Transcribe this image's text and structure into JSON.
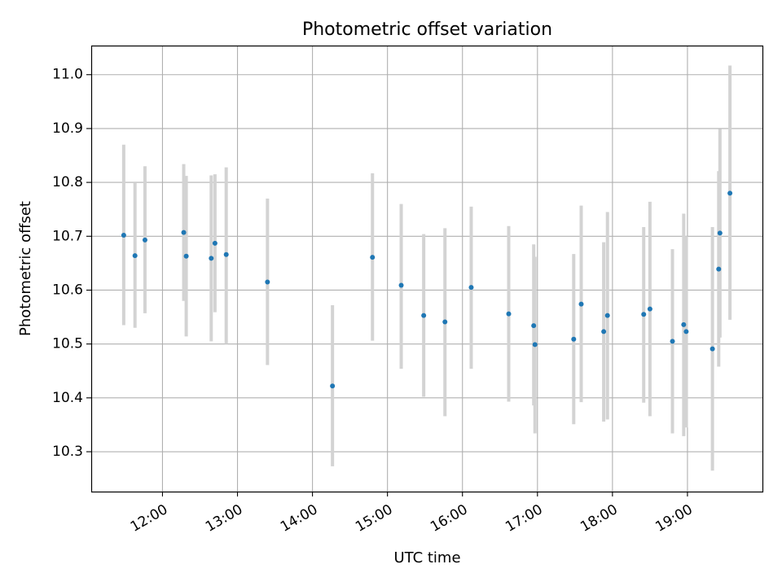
{
  "chart_data": {
    "type": "scatter",
    "title": "Photometric offset variation",
    "xlabel": "UTC time",
    "ylabel": "Photometric offset",
    "x_tick_labels": [
      "12:00",
      "13:00",
      "14:00",
      "15:00",
      "16:00",
      "17:00",
      "18:00",
      "19:00"
    ],
    "y_tick_labels": [
      "10.3",
      "10.4",
      "10.5",
      "10.6",
      "10.7",
      "10.8",
      "10.9",
      "11.0"
    ],
    "xlim": [
      "11:03",
      "20:00"
    ],
    "ylim": [
      10.226,
      11.054
    ],
    "grid": true,
    "colors": {
      "point": "#1f77b4",
      "errorbar": "#d3d3d3",
      "grid": "#b0b0b0",
      "axis": "#000000"
    },
    "series": [
      {
        "points": [
          {
            "x": "11:29",
            "y": 10.702,
            "ylow": 10.535,
            "yhigh": 10.87
          },
          {
            "x": "11:38",
            "y": 10.664,
            "ylow": 10.53,
            "yhigh": 10.8
          },
          {
            "x": "11:46",
            "y": 10.693,
            "ylow": 10.557,
            "yhigh": 10.83
          },
          {
            "x": "12:17",
            "y": 10.707,
            "ylow": 10.58,
            "yhigh": 10.834
          },
          {
            "x": "12:19",
            "y": 10.663,
            "ylow": 10.514,
            "yhigh": 10.812
          },
          {
            "x": "12:39",
            "y": 10.659,
            "ylow": 10.505,
            "yhigh": 10.813
          },
          {
            "x": "12:42",
            "y": 10.687,
            "ylow": 10.559,
            "yhigh": 10.815
          },
          {
            "x": "12:51",
            "y": 10.666,
            "ylow": 10.5,
            "yhigh": 10.828
          },
          {
            "x": "13:24",
            "y": 10.615,
            "ylow": 10.461,
            "yhigh": 10.77
          },
          {
            "x": "14:16",
            "y": 10.422,
            "ylow": 10.273,
            "yhigh": 10.572
          },
          {
            "x": "14:48",
            "y": 10.661,
            "ylow": 10.506,
            "yhigh": 10.817
          },
          {
            "x": "15:11",
            "y": 10.609,
            "ylow": 10.454,
            "yhigh": 10.76
          },
          {
            "x": "15:29",
            "y": 10.553,
            "ylow": 10.402,
            "yhigh": 10.704
          },
          {
            "x": "15:46",
            "y": 10.541,
            "ylow": 10.366,
            "yhigh": 10.715
          },
          {
            "x": "16:07",
            "y": 10.605,
            "ylow": 10.454,
            "yhigh": 10.755
          },
          {
            "x": "16:37",
            "y": 10.556,
            "ylow": 10.393,
            "yhigh": 10.719
          },
          {
            "x": "16:57",
            "y": 10.534,
            "ylow": 10.386,
            "yhigh": 10.685
          },
          {
            "x": "16:58",
            "y": 10.499,
            "ylow": 10.334,
            "yhigh": 10.662
          },
          {
            "x": "17:29",
            "y": 10.509,
            "ylow": 10.351,
            "yhigh": 10.667
          },
          {
            "x": "17:35",
            "y": 10.574,
            "ylow": 10.392,
            "yhigh": 10.757
          },
          {
            "x": "17:53",
            "y": 10.523,
            "ylow": 10.356,
            "yhigh": 10.689
          },
          {
            "x": "17:56",
            "y": 10.553,
            "ylow": 10.36,
            "yhigh": 10.745
          },
          {
            "x": "18:25",
            "y": 10.555,
            "ylow": 10.391,
            "yhigh": 10.717
          },
          {
            "x": "18:30",
            "y": 10.565,
            "ylow": 10.366,
            "yhigh": 10.764
          },
          {
            "x": "18:48",
            "y": 10.505,
            "ylow": 10.334,
            "yhigh": 10.676
          },
          {
            "x": "18:57",
            "y": 10.536,
            "ylow": 10.329,
            "yhigh": 10.742
          },
          {
            "x": "18:59",
            "y": 10.523,
            "ylow": 10.345,
            "yhigh": 10.7
          },
          {
            "x": "19:20",
            "y": 10.491,
            "ylow": 10.265,
            "yhigh": 10.717
          },
          {
            "x": "19:25",
            "y": 10.639,
            "ylow": 10.458,
            "yhigh": 10.821
          },
          {
            "x": "19:26",
            "y": 10.706,
            "ylow": 10.512,
            "yhigh": 10.899
          },
          {
            "x": "19:34",
            "y": 10.78,
            "ylow": 10.545,
            "yhigh": 11.017
          }
        ]
      }
    ]
  }
}
